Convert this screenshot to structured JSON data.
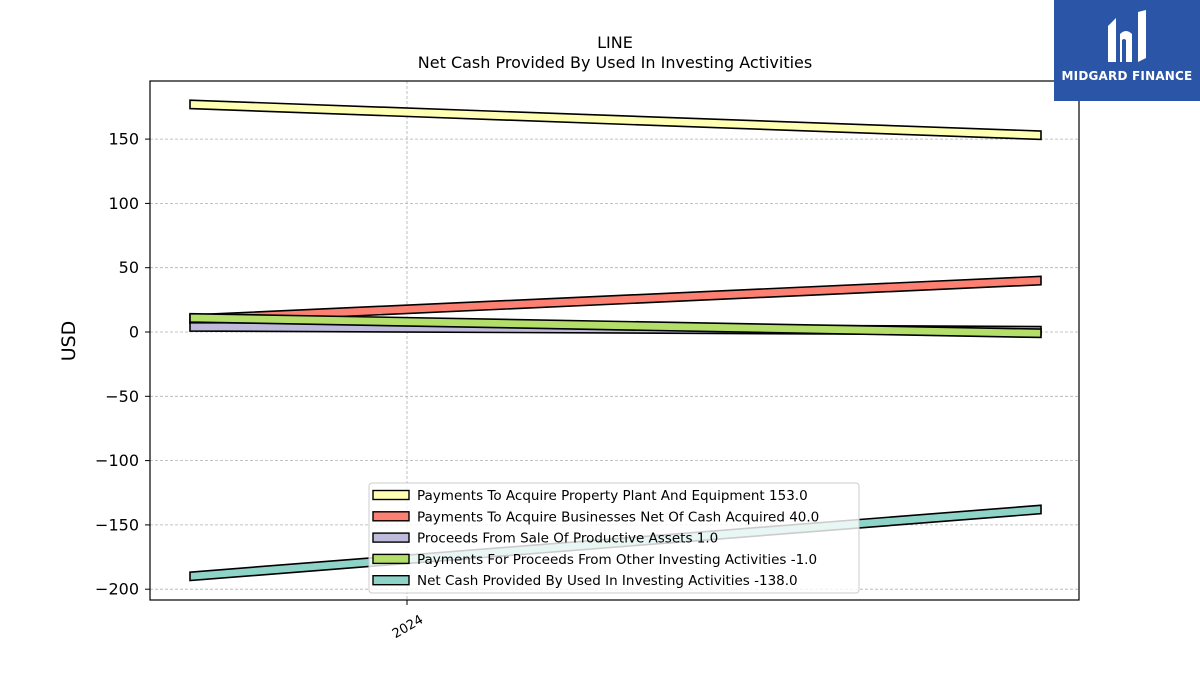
{
  "chart_data": {
    "type": "line",
    "title": "LINE",
    "subtitle": "Net Cash Provided By Used In Investing Activities",
    "xlabel": "",
    "ylabel": "USD",
    "x_tick_labels": [
      "2024"
    ],
    "xlim": [
      0,
      1
    ],
    "ylim": [
      -210,
      195
    ],
    "yticks": [
      150,
      100,
      50,
      0,
      -50,
      -100,
      -150,
      -200
    ],
    "ytick_labels": [
      "150",
      "100",
      "50",
      "0",
      "−50",
      "−100",
      "−150",
      "−200"
    ],
    "grid": true,
    "legend_position": "bottom-center",
    "series": [
      {
        "name": "Payments To Acquire Property Plant And Equipment  153.0",
        "x": [
          0,
          1
        ],
        "values": [
          177,
          153
        ],
        "color": "#ffffb3"
      },
      {
        "name": "Payments To Acquire Businesses Net Of Cash Acquired  40.0",
        "x": [
          0,
          1
        ],
        "values": [
          10,
          40
        ],
        "color": "#fb8072"
      },
      {
        "name": "Proceeds From Sale Of Productive Assets  1.0",
        "x": [
          0,
          1
        ],
        "values": [
          4,
          1
        ],
        "color": "#bebada"
      },
      {
        "name": "Payments For Proceeds From Other Investing Activities  -1.0",
        "x": [
          0,
          1
        ],
        "values": [
          11,
          -1
        ],
        "color": "#b3de69"
      },
      {
        "name": "Net Cash Provided By Used In Investing Activities  -138.0",
        "x": [
          0,
          1
        ],
        "values": [
          -190,
          -138
        ],
        "color": "#8dd3c7"
      }
    ]
  },
  "logo": {
    "text": "MIDGARD FINANCE",
    "color": "#2b55a6"
  }
}
